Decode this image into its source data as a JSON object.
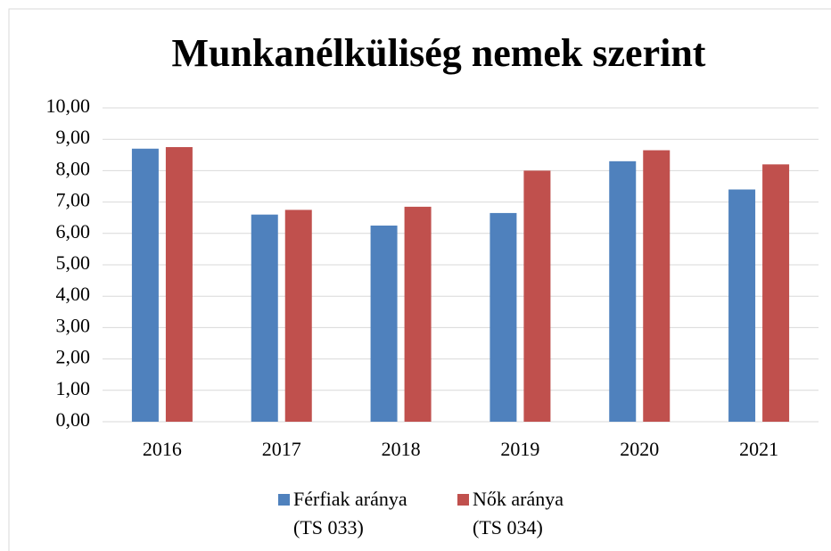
{
  "chart_data": {
    "type": "bar",
    "title": "Munkanélküliség nemek szerint",
    "categories": [
      "2016",
      "2017",
      "2018",
      "2019",
      "2020",
      "2021"
    ],
    "series": [
      {
        "name": "Férfiak aránya (TS 033)",
        "color": "#4f81bd",
        "values": [
          8.7,
          6.6,
          6.25,
          6.65,
          8.3,
          7.4
        ]
      },
      {
        "name": "Nők aránya (TS 034)",
        "color": "#c0504d",
        "values": [
          8.75,
          6.75,
          6.85,
          8.0,
          8.65,
          8.2
        ]
      }
    ],
    "ylim": [
      0,
      10
    ],
    "yticks": [
      {
        "value": 0,
        "label": "0,00"
      },
      {
        "value": 1,
        "label": "1,00"
      },
      {
        "value": 2,
        "label": "2,00"
      },
      {
        "value": 3,
        "label": "3,00"
      },
      {
        "value": 4,
        "label": "4,00"
      },
      {
        "value": 5,
        "label": "5,00"
      },
      {
        "value": 6,
        "label": "6,00"
      },
      {
        "value": 7,
        "label": "7,00"
      },
      {
        "value": 8,
        "label": "8,00"
      },
      {
        "value": 9,
        "label": "9,00"
      },
      {
        "value": 10,
        "label": "10,00"
      }
    ],
    "grid": true,
    "legend": "bottom"
  }
}
